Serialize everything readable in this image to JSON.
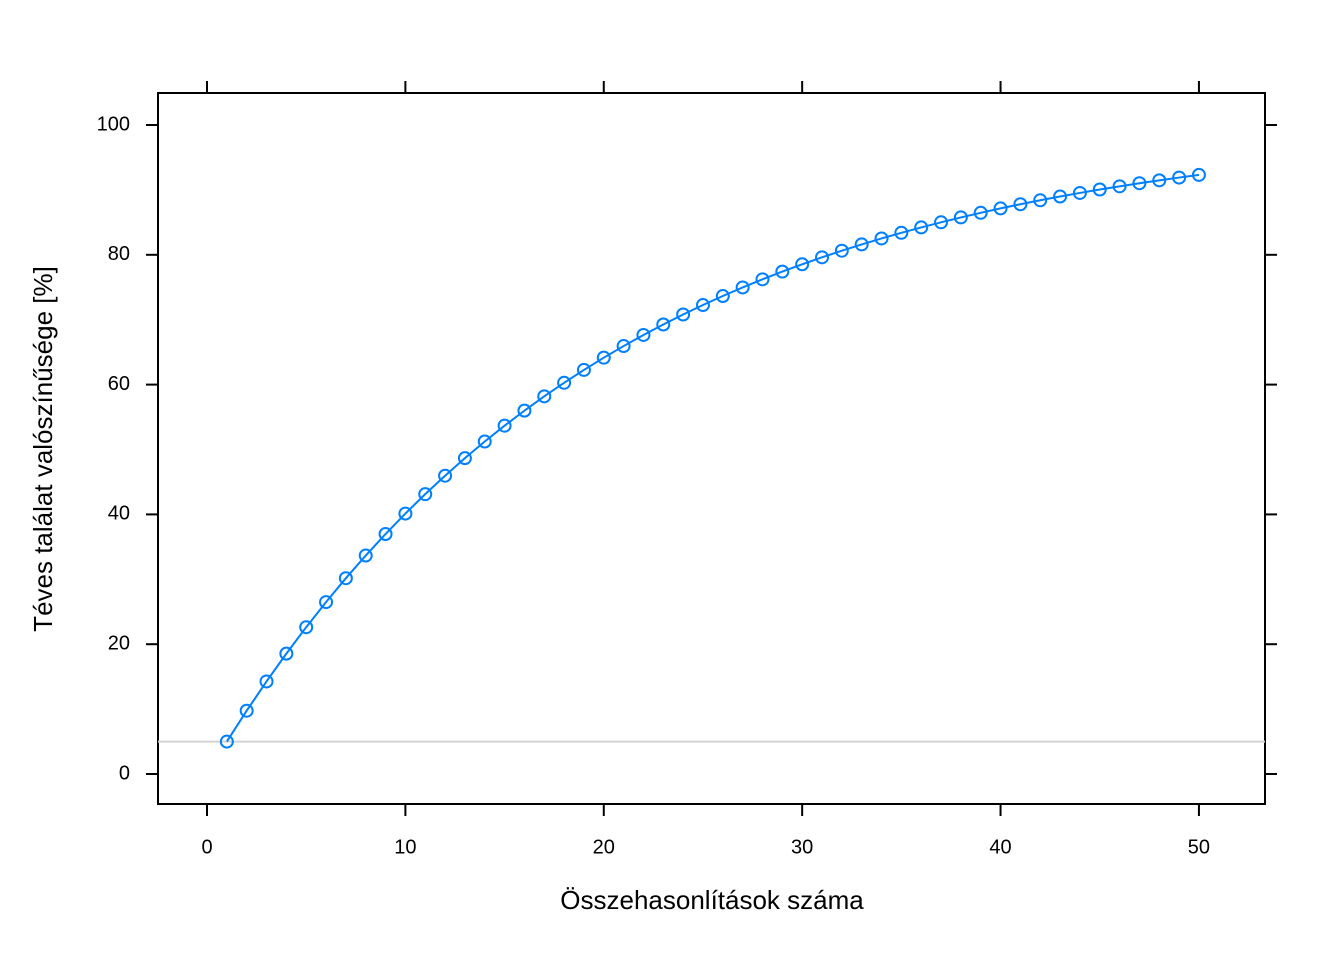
{
  "chart_data": {
    "type": "line",
    "x_label": "Összehasonlítások száma",
    "y_label": "Téves találat valószínűsége [%]",
    "x": [
      1,
      2,
      3,
      4,
      5,
      6,
      7,
      8,
      9,
      10,
      11,
      12,
      13,
      14,
      15,
      16,
      17,
      18,
      19,
      20,
      21,
      22,
      23,
      24,
      25,
      26,
      27,
      28,
      29,
      30,
      31,
      32,
      33,
      34,
      35,
      36,
      37,
      38,
      39,
      40,
      41,
      42,
      43,
      44,
      45,
      46,
      47,
      48,
      49,
      50
    ],
    "series": [
      {
        "name": "Téves találat valószínűsége",
        "color": "#0080ff",
        "values": [
          5.0,
          9.75,
          14.26,
          18.55,
          22.62,
          26.49,
          30.17,
          33.66,
          36.98,
          40.13,
          43.12,
          45.96,
          48.67,
          51.23,
          53.67,
          55.99,
          58.19,
          60.28,
          62.26,
          64.15,
          65.94,
          67.65,
          69.26,
          70.8,
          72.26,
          73.65,
          74.97,
          76.22,
          77.41,
          78.54,
          79.61,
          80.63,
          81.6,
          82.52,
          83.39,
          84.22,
          85.01,
          85.76,
          86.47,
          87.15,
          87.79,
          88.4,
          88.98,
          89.53,
          90.06,
          90.55,
          91.03,
          91.47,
          91.9,
          92.31
        ]
      }
    ],
    "reference_line": 5,
    "reference_color": "#d3d3d3",
    "xlim": [
      -2.47,
      53.33
    ],
    "xticks": [
      0,
      10,
      20,
      30,
      40,
      50
    ],
    "ylim": [
      -4.62,
      104.93
    ],
    "yticks": [
      0,
      20,
      40,
      60,
      80,
      100
    ],
    "grid": false
  }
}
